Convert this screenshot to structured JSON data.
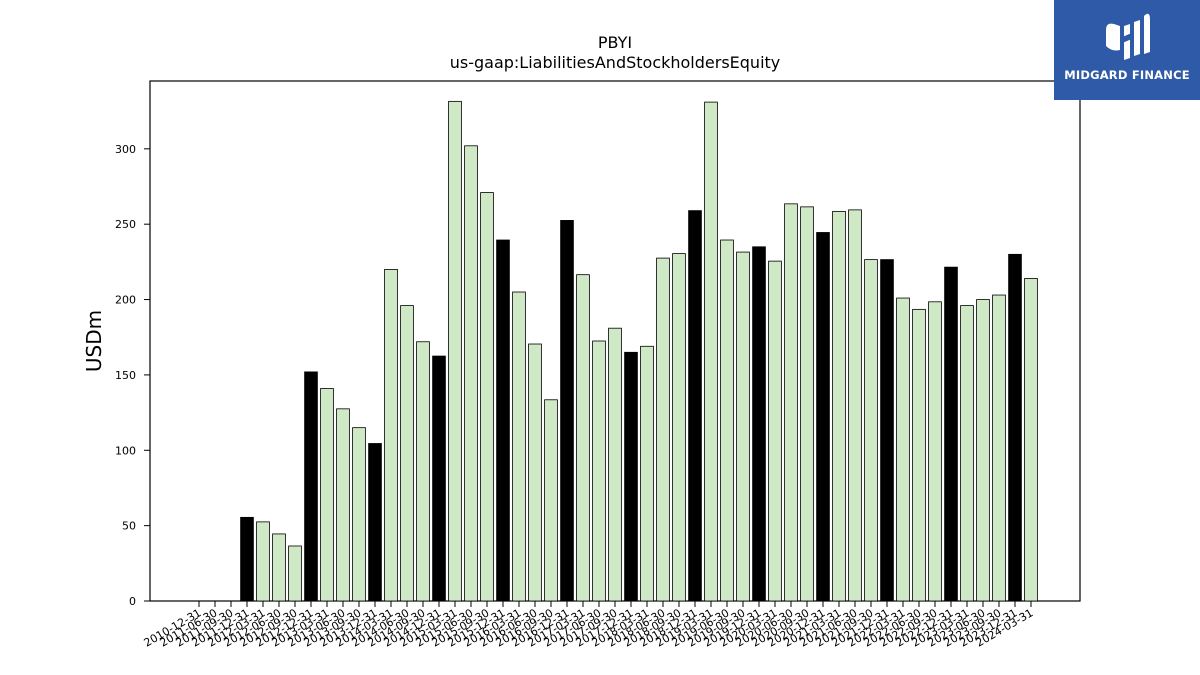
{
  "logo": {
    "text": "MIDGARD FINANCE"
  },
  "chart_data": {
    "type": "bar",
    "title": "PBYI",
    "subtitle": "us-gaap:LiabilitiesAndStockholdersEquity",
    "xlabel": "",
    "ylabel": "USDm",
    "ylim": [
      0,
      345
    ],
    "yticks": [
      0,
      50,
      100,
      150,
      200,
      250,
      300
    ],
    "grid": false,
    "colors": {
      "annual": "#000000",
      "quarter": "#cfe8c6",
      "edge": "#000000"
    },
    "categories": [
      "2010-12-31",
      "2011-06-30",
      "2011-09-30",
      "2011-12-31",
      "2012-03-31",
      "2012-06-30",
      "2012-09-30",
      "2012-12-31",
      "2013-03-31",
      "2013-06-30",
      "2013-09-30",
      "2013-12-31",
      "2014-03-31",
      "2014-06-30",
      "2014-09-30",
      "2014-12-31",
      "2015-03-31",
      "2015-06-30",
      "2015-09-30",
      "2015-12-31",
      "2016-03-31",
      "2016-06-30",
      "2016-09-30",
      "2016-12-31",
      "2017-03-31",
      "2017-06-30",
      "2017-09-30",
      "2017-12-31",
      "2018-03-31",
      "2018-06-30",
      "2018-09-30",
      "2018-12-31",
      "2019-03-31",
      "2019-06-30",
      "2019-09-30",
      "2019-12-31",
      "2020-03-31",
      "2020-06-30",
      "2020-09-30",
      "2020-12-31",
      "2021-03-31",
      "2021-06-30",
      "2021-09-30",
      "2021-12-31",
      "2022-03-31",
      "2022-06-30",
      "2022-09-30",
      "2022-12-31",
      "2023-03-31",
      "2023-06-30",
      "2023-09-30",
      "2023-12-31",
      "2024-03-31"
    ],
    "values": [
      null,
      null,
      null,
      55.5,
      52.5,
      44.5,
      36.5,
      152,
      141,
      127.5,
      115,
      104.5,
      220,
      196,
      172,
      162.5,
      331.5,
      302,
      271,
      239.5,
      205,
      170.5,
      133.5,
      252.5,
      216.5,
      172.5,
      181,
      165,
      169,
      227.5,
      230.5,
      259,
      331,
      239.5,
      231.5,
      235,
      225.5,
      263.5,
      261.5,
      244.5,
      258.5,
      259.5,
      226.5,
      226.5,
      201,
      193.5,
      198.5,
      221.5,
      196,
      200,
      203,
      230,
      214
    ],
    "annual": [
      false,
      false,
      false,
      true,
      false,
      false,
      false,
      true,
      false,
      false,
      false,
      true,
      false,
      false,
      false,
      true,
      false,
      false,
      false,
      true,
      false,
      false,
      false,
      true,
      false,
      false,
      false,
      true,
      false,
      false,
      false,
      true,
      false,
      false,
      false,
      true,
      false,
      false,
      false,
      true,
      false,
      false,
      false,
      true,
      false,
      false,
      false,
      true,
      false,
      false,
      false,
      true,
      false
    ]
  }
}
